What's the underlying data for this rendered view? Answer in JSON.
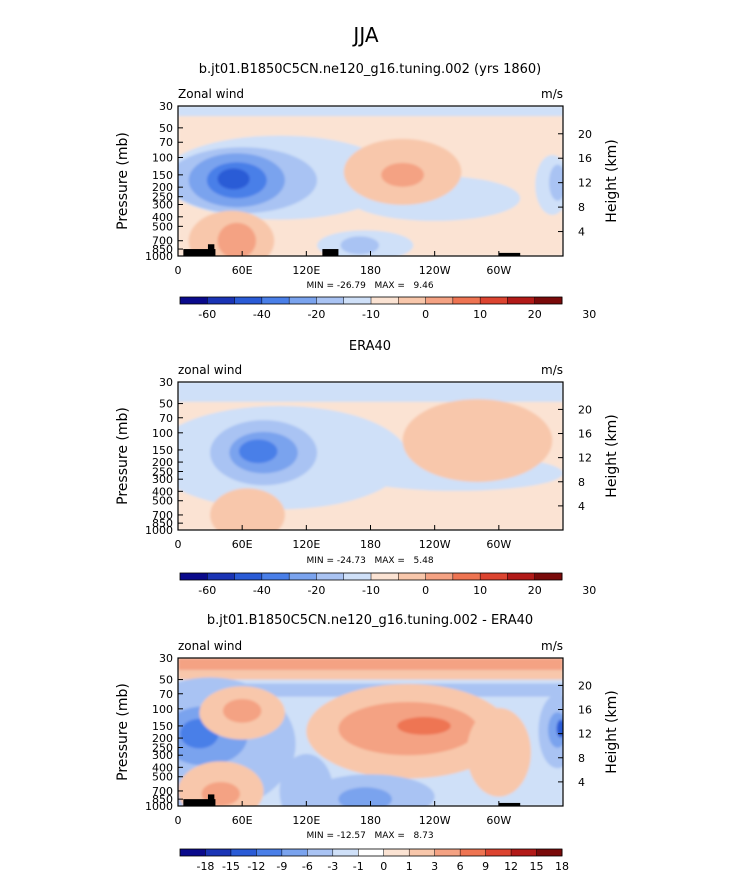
{
  "page": {
    "season": "JJA"
  },
  "colors": {
    "levels": [
      "#0a0a8c",
      "#1a34b5",
      "#2a5bd6",
      "#4a7fe8",
      "#7aa3ee",
      "#a9c3f3",
      "#cfe0f8",
      "#fbe3d3",
      "#f8c7ab",
      "#f4a283",
      "#ee7452",
      "#dc4430",
      "#b21a18",
      "#7a0a0a"
    ],
    "topography": "#000000"
  },
  "chart_data": [
    {
      "type": "heatmap",
      "id": "model",
      "title": "b.jt01.B1850C5CN.ne120_g16.tuning.002 (yrs 1860)",
      "left_label": "Zonal wind",
      "units": "m/s",
      "ylabel": "Pressure (mb)",
      "y2label": "Height (km)",
      "xticks": [
        "0",
        "60E",
        "120E",
        "180",
        "120W",
        "60W"
      ],
      "yticks": [
        "30",
        "50",
        "70",
        "100",
        "150",
        "200",
        "250",
        "300",
        "400",
        "500",
        "700",
        "850",
        "1000"
      ],
      "y2ticks": [
        "20",
        "16",
        "12",
        "8",
        "4"
      ],
      "min_max_text": "MIN = -26.79   MAX =   9.46",
      "colorbar_labels": [
        "-60",
        "-40",
        "-20",
        "-10",
        "0",
        "10",
        "20",
        "30"
      ],
      "background_level": 7,
      "blobs": [
        {
          "level": 6,
          "lon": 95,
          "p": 160,
          "a": 110,
          "b": 0.28
        },
        {
          "level": 5,
          "lon": 60,
          "p": 170,
          "a": 70,
          "b": 0.22
        },
        {
          "level": 4,
          "lon": 55,
          "p": 170,
          "a": 45,
          "b": 0.18
        },
        {
          "level": 3,
          "lon": 55,
          "p": 170,
          "a": 28,
          "b": 0.12
        },
        {
          "level": 2,
          "lon": 52,
          "p": 165,
          "a": 15,
          "b": 0.07
        },
        {
          "level": 6,
          "lon": 240,
          "p": 260,
          "a": 80,
          "b": 0.15
        },
        {
          "level": 6,
          "lon": 350,
          "p": 190,
          "a": 16,
          "b": 0.2
        },
        {
          "level": 5,
          "lon": 355,
          "p": 180,
          "a": 8,
          "b": 0.12
        },
        {
          "level": 8,
          "lon": 210,
          "p": 140,
          "a": 55,
          "b": 0.22
        },
        {
          "level": 9,
          "lon": 210,
          "p": 150,
          "a": 20,
          "b": 0.08
        },
        {
          "level": 8,
          "lon": 50,
          "p": 700,
          "a": 40,
          "b": 0.2
        },
        {
          "level": 9,
          "lon": 55,
          "p": 700,
          "a": 18,
          "b": 0.12
        },
        {
          "level": 6,
          "lon": 175,
          "p": 780,
          "a": 45,
          "b": 0.1
        },
        {
          "level": 5,
          "lon": 170,
          "p": 780,
          "a": 18,
          "b": 0.06
        }
      ],
      "bands": [
        {
          "level": 6,
          "p1": 30,
          "p2": 38
        }
      ],
      "topo": [
        [
          5,
          35,
          850
        ],
        [
          28,
          34,
          760
        ],
        [
          135,
          150,
          850
        ],
        [
          300,
          320,
          930
        ]
      ]
    },
    {
      "type": "heatmap",
      "id": "era40",
      "title": "ERA40",
      "left_label": "zonal wind",
      "units": "m/s",
      "ylabel": "Pressure (mb)",
      "y2label": "Height (km)",
      "xticks": [
        "0",
        "60E",
        "120E",
        "180",
        "120W",
        "60W"
      ],
      "yticks": [
        "30",
        "50",
        "70",
        "100",
        "150",
        "200",
        "250",
        "300",
        "400",
        "500",
        "700",
        "850",
        "1000"
      ],
      "y2ticks": [
        "20",
        "16",
        "12",
        "8",
        "4"
      ],
      "min_max_text": "MIN = -24.73   MAX =   5.48",
      "colorbar_labels": [
        "-60",
        "-40",
        "-20",
        "-10",
        "0",
        "10",
        "20",
        "30"
      ],
      "background_level": 7,
      "blobs": [
        {
          "level": 6,
          "lon": 95,
          "p": 180,
          "a": 120,
          "b": 0.35
        },
        {
          "level": 5,
          "lon": 80,
          "p": 160,
          "a": 50,
          "b": 0.22
        },
        {
          "level": 4,
          "lon": 80,
          "p": 160,
          "a": 32,
          "b": 0.14
        },
        {
          "level": 3,
          "lon": 75,
          "p": 155,
          "a": 18,
          "b": 0.08
        },
        {
          "level": 6,
          "lon": 260,
          "p": 260,
          "a": 100,
          "b": 0.12
        },
        {
          "level": 8,
          "lon": 280,
          "p": 120,
          "a": 70,
          "b": 0.28
        },
        {
          "level": 8,
          "lon": 65,
          "p": 700,
          "a": 35,
          "b": 0.18
        }
      ],
      "bands": [
        {
          "level": 6,
          "p1": 30,
          "p2": 48
        }
      ],
      "topo": []
    },
    {
      "type": "heatmap",
      "id": "diff",
      "title": "b.jt01.B1850C5CN.ne120_g16.tuning.002 - ERA40",
      "left_label": "zonal wind",
      "units": "m/s",
      "ylabel": "Pressure (mb)",
      "y2label": "Height (km)",
      "xticks": [
        "0",
        "60E",
        "120E",
        "180",
        "120W",
        "60W"
      ],
      "yticks": [
        "30",
        "50",
        "70",
        "100",
        "150",
        "200",
        "250",
        "300",
        "400",
        "500",
        "700",
        "850",
        "1000"
      ],
      "y2ticks": [
        "20",
        "16",
        "12",
        "8",
        "4"
      ],
      "min_max_text": "MIN = -12.57   MAX =   8.73",
      "colorbar_labels": [
        "-18",
        "-15",
        "-12",
        "-9",
        "-6",
        "-3",
        "-1",
        "0",
        "1",
        "3",
        "6",
        "9",
        "12",
        "15",
        "18"
      ],
      "background_level": 6,
      "blobs": [
        {
          "level": 5,
          "lon": 30,
          "p": 230,
          "a": 80,
          "b": 0.45
        },
        {
          "level": 4,
          "lon": 25,
          "p": 190,
          "a": 40,
          "b": 0.2
        },
        {
          "level": 3,
          "lon": 20,
          "p": 180,
          "a": 18,
          "b": 0.1
        },
        {
          "level": 5,
          "lon": 120,
          "p": 700,
          "a": 25,
          "b": 0.25
        },
        {
          "level": 8,
          "lon": 60,
          "p": 110,
          "a": 40,
          "b": 0.18
        },
        {
          "level": 9,
          "lon": 60,
          "p": 105,
          "a": 18,
          "b": 0.08
        },
        {
          "level": 8,
          "lon": 215,
          "p": 170,
          "a": 95,
          "b": 0.32
        },
        {
          "level": 9,
          "lon": 215,
          "p": 160,
          "a": 65,
          "b": 0.18
        },
        {
          "level": 10,
          "lon": 230,
          "p": 150,
          "a": 25,
          "b": 0.06
        },
        {
          "level": 8,
          "lon": 40,
          "p": 700,
          "a": 40,
          "b": 0.2
        },
        {
          "level": 9,
          "lon": 40,
          "p": 750,
          "a": 18,
          "b": 0.08
        },
        {
          "level": 5,
          "lon": 180,
          "p": 800,
          "a": 60,
          "b": 0.15
        },
        {
          "level": 4,
          "lon": 175,
          "p": 850,
          "a": 25,
          "b": 0.08
        },
        {
          "level": 5,
          "lon": 355,
          "p": 170,
          "a": 18,
          "b": 0.25
        },
        {
          "level": 4,
          "lon": 355,
          "p": 165,
          "a": 9,
          "b": 0.12
        },
        {
          "level": 2,
          "lon": 358,
          "p": 160,
          "a": 4,
          "b": 0.06
        },
        {
          "level": 8,
          "lon": 300,
          "p": 280,
          "a": 30,
          "b": 0.3
        }
      ],
      "bands": [
        {
          "level": 5,
          "p1": 55,
          "p2": 75
        },
        {
          "level": 9,
          "p1": 30,
          "p2": 40
        },
        {
          "level": 8,
          "p1": 40,
          "p2": 50
        }
      ],
      "topo": [
        [
          5,
          35,
          850
        ],
        [
          28,
          34,
          760
        ],
        [
          300,
          320,
          930
        ]
      ]
    }
  ]
}
